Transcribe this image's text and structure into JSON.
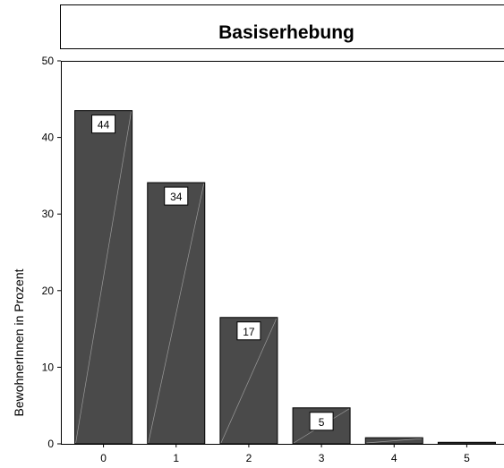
{
  "chart_data": {
    "type": "bar",
    "title": "Basiserhebung",
    "xlabel": "",
    "ylabel": "BewohnerInnen in Prozent",
    "categories": [
      "0",
      "1",
      "2",
      "3",
      "4",
      "5"
    ],
    "values": [
      43.5,
      34.1,
      16.5,
      4.7,
      0.8,
      0.2
    ],
    "data_labels": [
      "44",
      "34",
      "17",
      "5",
      "",
      ""
    ],
    "yticks": [
      "0",
      "10",
      "20",
      "30",
      "40",
      "50"
    ],
    "ylim": [
      0,
      50
    ],
    "grid": false,
    "colors": {
      "bar": "#4a4a4a",
      "bar_stroke": "#000000",
      "background": "#ffffff"
    }
  }
}
